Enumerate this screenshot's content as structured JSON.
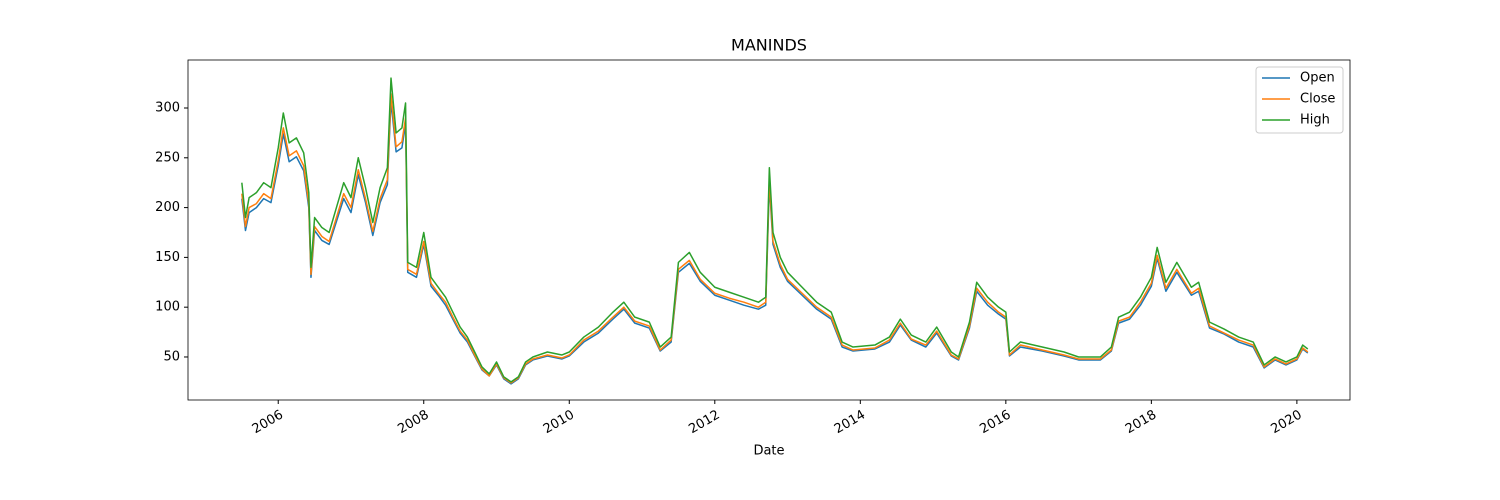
{
  "chart_data": {
    "type": "line",
    "title": "MANINDS",
    "xlabel": "Date",
    "xlim": [
      2004.76,
      2020.73
    ],
    "xticks": [
      2006,
      2008,
      2010,
      2012,
      2014,
      2016,
      2018,
      2020
    ],
    "ylim": [
      6.8,
      348.2
    ],
    "yticks": [
      50,
      100,
      150,
      200,
      250,
      300
    ],
    "legend": "upper right",
    "grid": false,
    "x": [
      2005.5,
      2005.55,
      2005.6,
      2005.7,
      2005.8,
      2005.9,
      2006.0,
      2006.07,
      2006.15,
      2006.25,
      2006.35,
      2006.42,
      2006.45,
      2006.5,
      2006.6,
      2006.7,
      2006.8,
      2006.9,
      2007.0,
      2007.1,
      2007.2,
      2007.3,
      2007.4,
      2007.5,
      2007.55,
      2007.62,
      2007.7,
      2007.75,
      2007.78,
      2007.9,
      2008.0,
      2008.1,
      2008.2,
      2008.3,
      2008.4,
      2008.5,
      2008.6,
      2008.7,
      2008.8,
      2008.9,
      2009.0,
      2009.1,
      2009.2,
      2009.3,
      2009.4,
      2009.5,
      2009.7,
      2009.9,
      2010.0,
      2010.2,
      2010.4,
      2010.6,
      2010.75,
      2010.9,
      2011.1,
      2011.25,
      2011.4,
      2011.5,
      2011.65,
      2011.8,
      2012.0,
      2012.2,
      2012.4,
      2012.6,
      2012.7,
      2012.75,
      2012.8,
      2012.9,
      2013.0,
      2013.2,
      2013.4,
      2013.6,
      2013.75,
      2013.9,
      2014.2,
      2014.4,
      2014.55,
      2014.7,
      2014.9,
      2015.05,
      2015.25,
      2015.35,
      2015.5,
      2015.6,
      2015.75,
      2015.9,
      2016.0,
      2016.05,
      2016.2,
      2016.5,
      2016.8,
      2017.0,
      2017.3,
      2017.45,
      2017.55,
      2017.7,
      2017.85,
      2018.0,
      2018.08,
      2018.2,
      2018.35,
      2018.55,
      2018.65,
      2018.8,
      2019.0,
      2019.2,
      2019.4,
      2019.55,
      2019.7,
      2019.85,
      2020.0,
      2020.08,
      2020.15
    ],
    "series": [
      {
        "name": "Open",
        "color": "#1f77b4",
        "values": [
          209,
          177,
          195,
          200,
          209,
          205,
          242,
          274,
          246,
          251,
          237,
          200,
          130,
          177,
          167,
          163,
          186,
          209,
          195,
          233,
          205,
          172,
          205,
          223,
          307,
          256,
          260,
          284,
          135,
          130,
          163,
          121,
          112,
          102,
          88,
          74,
          65,
          51,
          37,
          31,
          42,
          28,
          23,
          28,
          42,
          47,
          51,
          48,
          51,
          65,
          74,
          88,
          98,
          84,
          79,
          56,
          65,
          135,
          144,
          126,
          112,
          107,
          102,
          98,
          102,
          223,
          163,
          140,
          126,
          112,
          98,
          88,
          60,
          56,
          58,
          65,
          82,
          67,
          60,
          74,
          51,
          47,
          79,
          116,
          102,
          93,
          88,
          51,
          60,
          56,
          51,
          47,
          47,
          56,
          84,
          88,
          102,
          121,
          149,
          116,
          135,
          112,
          116,
          79,
          73,
          65,
          60,
          39,
          47,
          42,
          47,
          58,
          54
        ]
      },
      {
        "name": "Close",
        "color": "#ff7f0e",
        "values": [
          214,
          181,
          200,
          204,
          214,
          209,
          247,
          280,
          252,
          257,
          242,
          204,
          133,
          181,
          171,
          166,
          190,
          214,
          200,
          238,
          209,
          176,
          209,
          228,
          314,
          261,
          266,
          290,
          138,
          133,
          166,
          124,
          114,
          105,
          90,
          76,
          67,
          52,
          38,
          31,
          43,
          29,
          24,
          29,
          43,
          48,
          52,
          49,
          52,
          67,
          76,
          90,
          100,
          86,
          81,
          57,
          67,
          138,
          147,
          128,
          114,
          109,
          105,
          100,
          105,
          228,
          166,
          143,
          128,
          114,
          100,
          90,
          62,
          57,
          59,
          67,
          84,
          68,
          62,
          76,
          52,
          48,
          81,
          119,
          105,
          95,
          90,
          52,
          62,
          57,
          52,
          48,
          48,
          57,
          86,
          90,
          105,
          124,
          152,
          119,
          138,
          114,
          119,
          81,
          74,
          67,
          62,
          40,
          48,
          43,
          48,
          59,
          55
        ]
      },
      {
        "name": "High",
        "color": "#2ca02c",
        "values": [
          225,
          190,
          210,
          215,
          225,
          220,
          260,
          295,
          265,
          270,
          255,
          215,
          140,
          190,
          180,
          175,
          200,
          225,
          210,
          250,
          220,
          185,
          220,
          240,
          330,
          275,
          280,
          305,
          145,
          140,
          175,
          130,
          120,
          110,
          95,
          80,
          70,
          55,
          40,
          33,
          45,
          30,
          25,
          30,
          45,
          50,
          55,
          52,
          55,
          70,
          80,
          95,
          105,
          90,
          85,
          60,
          70,
          145,
          155,
          135,
          120,
          115,
          110,
          105,
          110,
          240,
          175,
          150,
          135,
          120,
          105,
          95,
          65,
          60,
          62,
          70,
          88,
          72,
          65,
          80,
          55,
          50,
          85,
          125,
          110,
          100,
          95,
          55,
          65,
          60,
          55,
          50,
          50,
          60,
          90,
          95,
          110,
          130,
          160,
          125,
          145,
          120,
          125,
          85,
          78,
          70,
          65,
          42,
          50,
          45,
          50,
          62,
          58
        ]
      }
    ]
  }
}
